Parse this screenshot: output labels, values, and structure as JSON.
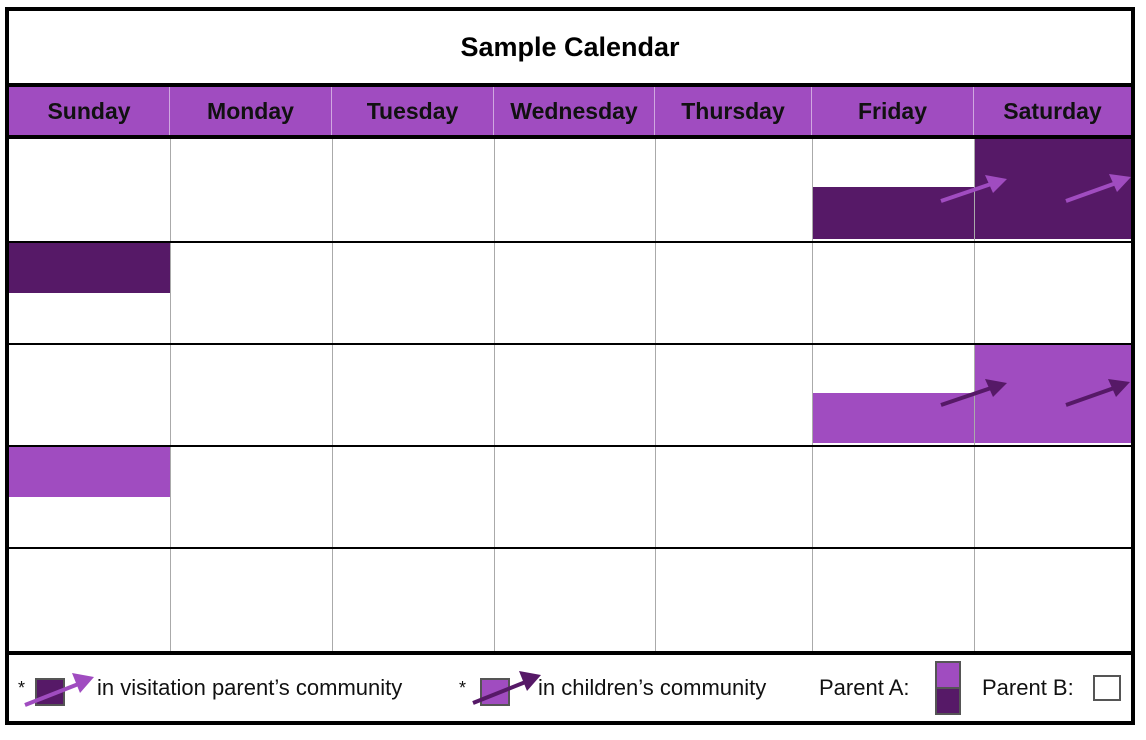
{
  "title": "Sample Calendar",
  "days": [
    "Sunday",
    "Monday",
    "Tuesday",
    "Wednesday",
    "Thursday",
    "Friday",
    "Saturday"
  ],
  "colors": {
    "parent_a_light": "#a04cc0",
    "parent_a_dark": "#561967",
    "parent_b": "#ffffff",
    "header": "#a04cc0"
  },
  "legend": {
    "asterisk": "*",
    "visitation_label": "in visitation parent’s community",
    "children_label": "in children’s community",
    "parent_a_label": "Parent A:",
    "parent_b_label": "Parent B:"
  }
}
